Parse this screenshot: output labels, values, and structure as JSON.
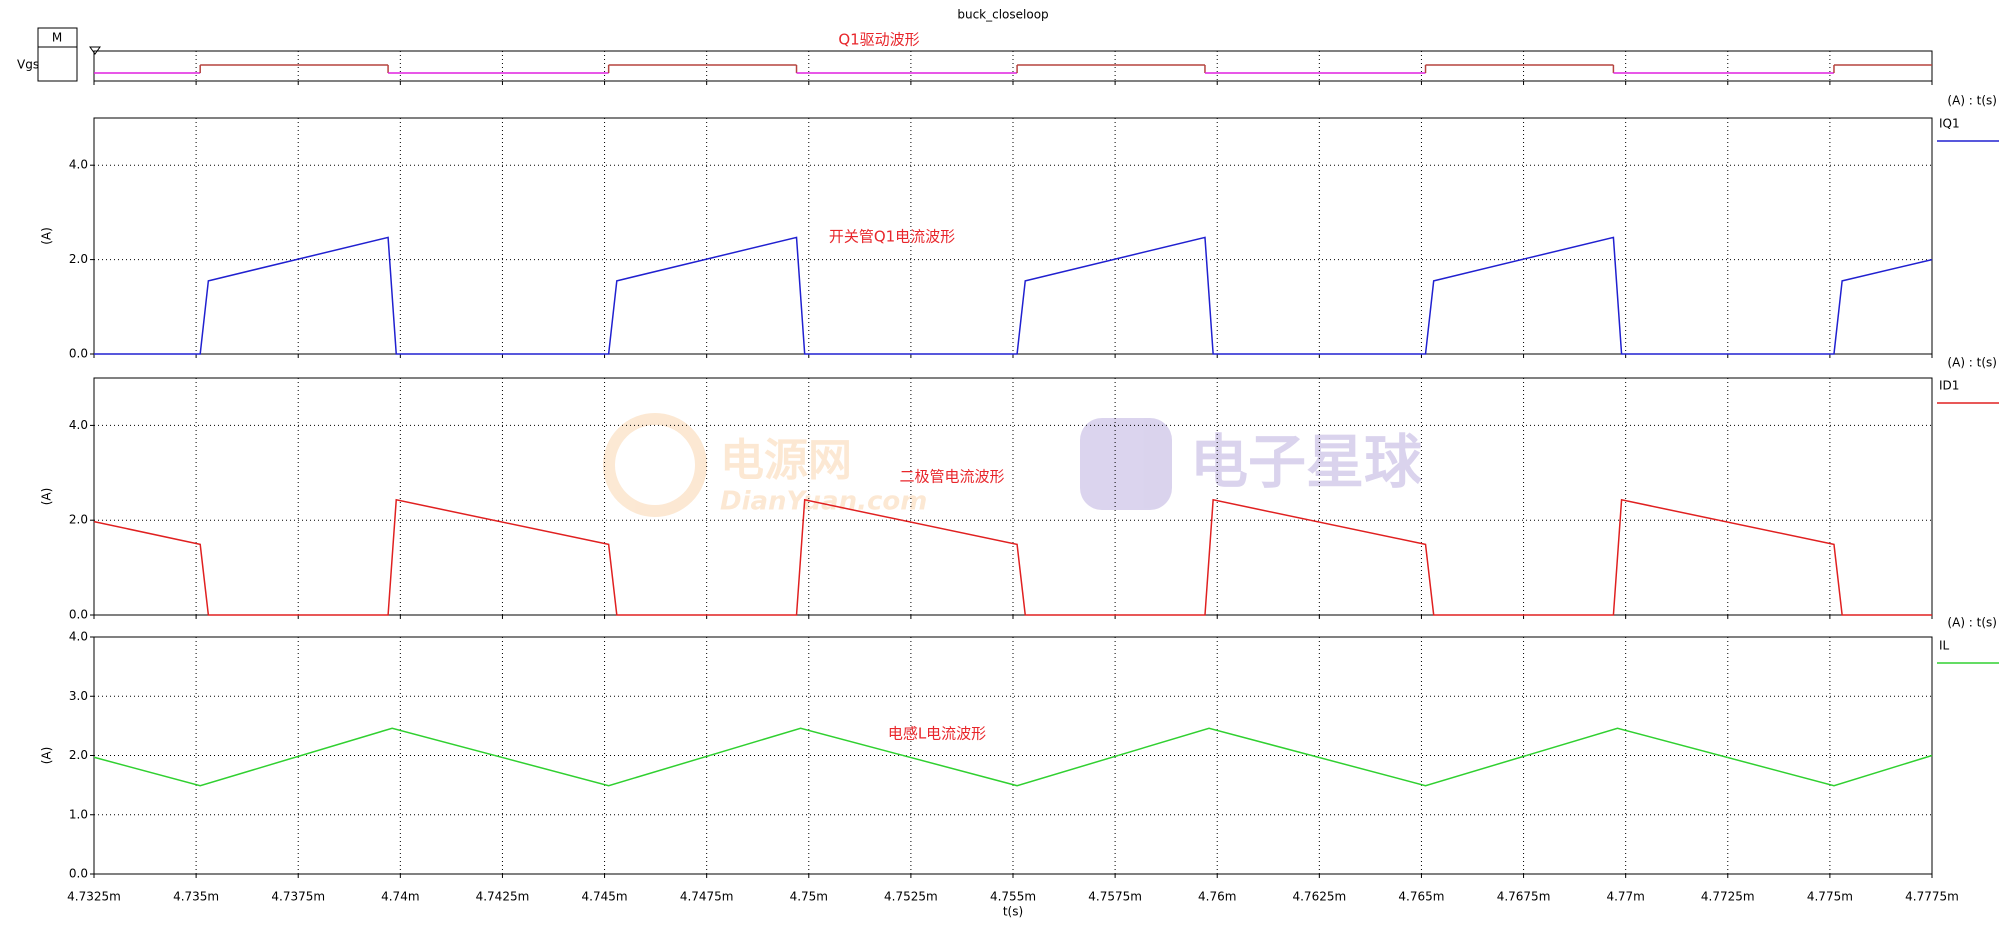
{
  "title": "buck_closeloop",
  "mode_label": "M",
  "watermarks": [
    "电源网",
    "DianYuan.com",
    "电子星球"
  ],
  "chart_data": [
    {
      "type": "line",
      "ylabel": "Vgs",
      "annotation": "Q1驱动波形",
      "xlim": [
        4.7325,
        4.7775
      ],
      "xticks": [
        4.7325,
        4.735,
        4.7375,
        4.74,
        4.7425,
        4.745,
        4.7475,
        4.75,
        4.7525,
        4.755,
        4.7575,
        4.76,
        4.7625,
        4.765,
        4.7675,
        4.77,
        4.7725,
        4.775,
        4.7775
      ],
      "grid": true,
      "x": [
        4.7325,
        4.7351,
        4.7351,
        4.7397,
        4.7397,
        4.7451,
        4.7451,
        4.7497,
        4.7497,
        4.7551,
        4.7551,
        4.7597,
        4.7597,
        4.7651,
        4.7651,
        4.7697,
        4.7697,
        4.7751,
        4.7751,
        4.7775
      ],
      "series": [
        {
          "color": "#b5433f",
          "low_color": "#e020e0",
          "values": [
            0,
            0,
            1,
            1,
            0,
            0,
            1,
            1,
            0,
            0,
            1,
            1,
            0,
            0,
            1,
            1,
            0,
            0,
            1,
            1
          ]
        }
      ]
    },
    {
      "type": "line",
      "ylabel": "(A)",
      "legend_header": "(A) : t(s)",
      "annotation": "开关管Q1电流波形",
      "xlim": [
        4.7325,
        4.7775
      ],
      "xticks": [
        4.7325,
        4.735,
        4.7375,
        4.74,
        4.7425,
        4.745,
        4.7475,
        4.75,
        4.7525,
        4.755,
        4.7575,
        4.76,
        4.7625,
        4.765,
        4.7675,
        4.77,
        4.7725,
        4.775,
        4.7775
      ],
      "ylim": [
        0,
        5
      ],
      "yticks": [
        {
          "value": 0,
          "label": "0.0"
        },
        {
          "value": 2,
          "label": "2.0"
        },
        {
          "value": 4,
          "label": "4.0"
        }
      ],
      "grid": true,
      "x": [
        4.7325,
        4.7351,
        4.7353,
        4.7397,
        4.7399,
        4.7451,
        4.7453,
        4.7497,
        4.7499,
        4.7551,
        4.7553,
        4.7597,
        4.7599,
        4.7651,
        4.7653,
        4.7697,
        4.7699,
        4.7751,
        4.7753,
        4.7775
      ],
      "series": [
        {
          "name": "IQ1",
          "color": "#2020d0",
          "values": [
            0,
            0,
            1.55,
            2.47,
            0,
            0,
            1.55,
            2.47,
            0,
            0,
            1.55,
            2.47,
            0,
            0,
            1.55,
            2.47,
            0,
            0,
            1.55,
            2.0
          ]
        }
      ]
    },
    {
      "type": "line",
      "ylabel": "(A)",
      "legend_header": "(A) : t(s)",
      "annotation": "二极管电流波形",
      "xlim": [
        4.7325,
        4.7775
      ],
      "xticks": [
        4.7325,
        4.735,
        4.7375,
        4.74,
        4.7425,
        4.745,
        4.7475,
        4.75,
        4.7525,
        4.755,
        4.7575,
        4.76,
        4.7625,
        4.765,
        4.7675,
        4.77,
        4.7725,
        4.775,
        4.7775
      ],
      "ylim": [
        0,
        5
      ],
      "yticks": [
        {
          "value": 0,
          "label": "0.0"
        },
        {
          "value": 2,
          "label": "2.0"
        },
        {
          "value": 4,
          "label": "4.0"
        }
      ],
      "grid": true,
      "x": [
        4.7325,
        4.7351,
        4.7353,
        4.7397,
        4.7399,
        4.7451,
        4.7453,
        4.7497,
        4.7499,
        4.7551,
        4.7553,
        4.7597,
        4.7599,
        4.7651,
        4.7653,
        4.7697,
        4.7699,
        4.7751,
        4.7753,
        4.7775
      ],
      "series": [
        {
          "name": "ID1",
          "color": "#e02020",
          "values": [
            1.97,
            1.49,
            0,
            0,
            2.43,
            1.49,
            0,
            0,
            2.43,
            1.49,
            0,
            0,
            2.43,
            1.49,
            0,
            0,
            2.43,
            1.49,
            0,
            0
          ]
        }
      ]
    },
    {
      "type": "line",
      "ylabel": "(A)",
      "legend_header": "(A) : t(s)",
      "annotation": "电感L电流波形",
      "xlabel": "t(s)",
      "xlim": [
        4.7325,
        4.7775
      ],
      "xticks": [
        {
          "value": 4.7325,
          "label": "4.7325m"
        },
        {
          "value": 4.735,
          "label": "4.735m"
        },
        {
          "value": 4.7375,
          "label": "4.7375m"
        },
        {
          "value": 4.74,
          "label": "4.74m"
        },
        {
          "value": 4.7425,
          "label": "4.7425m"
        },
        {
          "value": 4.745,
          "label": "4.745m"
        },
        {
          "value": 4.7475,
          "label": "4.7475m"
        },
        {
          "value": 4.75,
          "label": "4.75m"
        },
        {
          "value": 4.7525,
          "label": "4.7525m"
        },
        {
          "value": 4.755,
          "label": "4.755m"
        },
        {
          "value": 4.7575,
          "label": "4.7575m"
        },
        {
          "value": 4.76,
          "label": "4.76m"
        },
        {
          "value": 4.7625,
          "label": "4.7625m"
        },
        {
          "value": 4.765,
          "label": "4.765m"
        },
        {
          "value": 4.7675,
          "label": "4.7675m"
        },
        {
          "value": 4.77,
          "label": "4.77m"
        },
        {
          "value": 4.7725,
          "label": "4.7725m"
        },
        {
          "value": 4.775,
          "label": "4.775m"
        },
        {
          "value": 4.7775,
          "label": "4.7775m"
        }
      ],
      "ylim": [
        0,
        4
      ],
      "yticks": [
        {
          "value": 0,
          "label": "0.0"
        },
        {
          "value": 1,
          "label": "1.0"
        },
        {
          "value": 2,
          "label": "2.0"
        },
        {
          "value": 3,
          "label": "3.0"
        },
        {
          "value": 4,
          "label": "4.0"
        }
      ],
      "grid": true,
      "x": [
        4.7325,
        4.7351,
        4.7398,
        4.7451,
        4.7498,
        4.7551,
        4.7598,
        4.7651,
        4.7698,
        4.7751,
        4.7775
      ],
      "series": [
        {
          "name": "IL",
          "color": "#30d030",
          "values": [
            1.97,
            1.49,
            2.46,
            1.49,
            2.46,
            1.49,
            2.46,
            1.49,
            2.46,
            1.49,
            2.0
          ]
        }
      ]
    }
  ]
}
